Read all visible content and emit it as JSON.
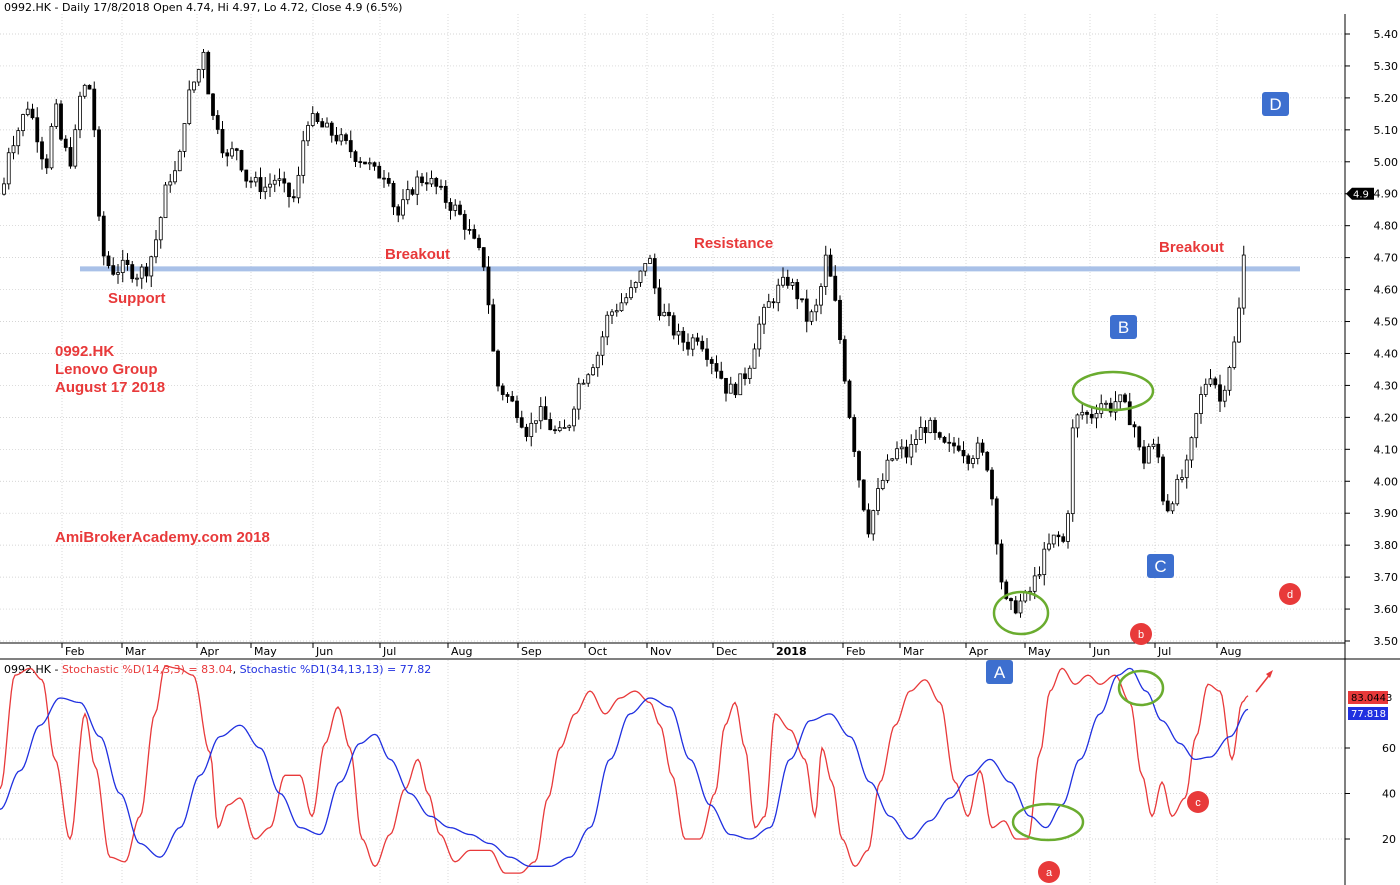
{
  "chart_data": [
    {
      "type": "candlestick",
      "header": "0992.HK - Daily 17/8/2018 Open 4.74, Hi 4.97, Lo 4.72, Close 4.9 (6.5%)",
      "months": [
        "Feb",
        "Mar",
        "Apr",
        "May",
        "Jun",
        "Jul",
        "Aug",
        "Sep",
        "Oct",
        "Nov",
        "Dec",
        "2018",
        "Feb",
        "Mar",
        "Apr",
        "May",
        "Jun",
        "Jul",
        "Aug"
      ],
      "y_ticks": [
        "5.40",
        "5.30",
        "5.20",
        "5.10",
        "5.00",
        "4.90",
        "4.80",
        "4.70",
        "4.60",
        "4.50",
        "4.40",
        "4.30",
        "4.20",
        "4.10",
        "4.00",
        "3.90",
        "3.80",
        "3.70",
        "3.60",
        "3.50"
      ],
      "ylim": [
        3.5,
        5.4
      ],
      "last_value_label": "4.9",
      "support_resistance_level": 4.665,
      "price_path": [
        [
          0,
          4.8
        ],
        [
          7,
          5.03
        ],
        [
          18,
          5.1
        ],
        [
          28,
          5.18
        ],
        [
          36,
          5.1
        ],
        [
          46,
          4.98
        ],
        [
          55,
          5.18
        ],
        [
          62,
          5.05
        ],
        [
          72,
          5.0
        ],
        [
          80,
          5.2
        ],
        [
          86,
          5.24
        ],
        [
          93,
          5.22
        ],
        [
          97,
          4.85
        ],
        [
          104,
          4.7
        ],
        [
          112,
          4.66
        ],
        [
          125,
          4.67
        ],
        [
          137,
          4.65
        ],
        [
          148,
          4.67
        ],
        [
          158,
          4.78
        ],
        [
          168,
          4.95
        ],
        [
          178,
          4.97
        ],
        [
          186,
          5.18
        ],
        [
          194,
          5.25
        ],
        [
          200,
          5.3
        ],
        [
          205,
          5.38
        ],
        [
          210,
          5.15
        ],
        [
          218,
          5.12
        ],
        [
          226,
          5.0
        ],
        [
          236,
          5.05
        ],
        [
          246,
          4.95
        ],
        [
          256,
          4.93
        ],
        [
          266,
          4.92
        ],
        [
          276,
          4.95
        ],
        [
          286,
          4.9
        ],
        [
          296,
          4.88
        ],
        [
          306,
          5.14
        ],
        [
          316,
          5.12
        ],
        [
          326,
          5.1
        ],
        [
          336,
          5.08
        ],
        [
          346,
          5.05
        ],
        [
          356,
          5.02
        ],
        [
          366,
          5.0
        ],
        [
          376,
          4.96
        ],
        [
          388,
          4.97
        ],
        [
          396,
          4.82
        ],
        [
          406,
          4.88
        ],
        [
          416,
          4.94
        ],
        [
          426,
          4.95
        ],
        [
          436,
          4.92
        ],
        [
          446,
          4.88
        ],
        [
          456,
          4.85
        ],
        [
          466,
          4.8
        ],
        [
          476,
          4.73
        ],
        [
          486,
          4.67
        ],
        [
          491,
          4.45
        ],
        [
          498,
          4.3
        ],
        [
          508,
          4.26
        ],
        [
          518,
          4.22
        ],
        [
          528,
          4.15
        ],
        [
          538,
          4.22
        ],
        [
          548,
          4.18
        ],
        [
          558,
          4.14
        ],
        [
          568,
          4.17
        ],
        [
          578,
          4.3
        ],
        [
          588,
          4.35
        ],
        [
          598,
          4.4
        ],
        [
          608,
          4.52
        ],
        [
          618,
          4.55
        ],
        [
          628,
          4.58
        ],
        [
          638,
          4.62
        ],
        [
          648,
          4.72
        ],
        [
          658,
          4.55
        ],
        [
          668,
          4.5
        ],
        [
          678,
          4.45
        ],
        [
          688,
          4.43
        ],
        [
          698,
          4.46
        ],
        [
          708,
          4.4
        ],
        [
          718,
          4.35
        ],
        [
          728,
          4.28
        ],
        [
          738,
          4.3
        ],
        [
          748,
          4.35
        ],
        [
          758,
          4.48
        ],
        [
          768,
          4.55
        ],
        [
          778,
          4.6
        ],
        [
          788,
          4.63
        ],
        [
          798,
          4.58
        ],
        [
          808,
          4.5
        ],
        [
          818,
          4.55
        ],
        [
          826,
          4.7
        ],
        [
          834,
          4.58
        ],
        [
          842,
          4.4
        ],
        [
          850,
          4.2
        ],
        [
          858,
          4.03
        ],
        [
          868,
          3.85
        ],
        [
          878,
          3.96
        ],
        [
          888,
          4.05
        ],
        [
          898,
          4.1
        ],
        [
          908,
          4.08
        ],
        [
          918,
          4.15
        ],
        [
          928,
          4.18
        ],
        [
          938,
          4.12
        ],
        [
          948,
          4.1
        ],
        [
          958,
          4.12
        ],
        [
          968,
          4.08
        ],
        [
          978,
          4.1
        ],
        [
          988,
          4.05
        ],
        [
          996,
          3.85
        ],
        [
          1004,
          3.62
        ],
        [
          1012,
          3.6
        ],
        [
          1020,
          3.62
        ],
        [
          1028,
          3.64
        ],
        [
          1036,
          3.7
        ],
        [
          1046,
          3.78
        ],
        [
          1056,
          3.83
        ],
        [
          1066,
          3.8
        ],
        [
          1072,
          4.15
        ],
        [
          1080,
          4.22
        ],
        [
          1090,
          4.2
        ],
        [
          1100,
          4.25
        ],
        [
          1110,
          4.23
        ],
        [
          1118,
          4.26
        ],
        [
          1126,
          4.22
        ],
        [
          1134,
          4.18
        ],
        [
          1142,
          4.05
        ],
        [
          1150,
          4.12
        ],
        [
          1158,
          4.08
        ],
        [
          1165,
          3.9
        ],
        [
          1172,
          3.95
        ],
        [
          1180,
          4.0
        ],
        [
          1188,
          4.05
        ],
        [
          1196,
          4.2
        ],
        [
          1204,
          4.3
        ],
        [
          1212,
          4.35
        ],
        [
          1220,
          4.25
        ],
        [
          1228,
          4.35
        ],
        [
          1236,
          4.45
        ],
        [
          1242,
          4.62
        ],
        [
          1248,
          4.9
        ]
      ],
      "annotations": {
        "support": "Support",
        "breakout_left": "Breakout",
        "resistance": "Resistance",
        "breakout_right": "Breakout",
        "info_line1": "0992.HK",
        "info_line2": "Lenovo Group",
        "info_line3": "August 17 2018",
        "watermark": "AmiBrokerAcademy.com  2018"
      },
      "wave_labels": {
        "A": "A",
        "B": "B",
        "C": "C",
        "D": "D"
      }
    },
    {
      "type": "line",
      "header_symbol": "0992.HK - ",
      "series": [
        {
          "name": "Stochastic %D(14,3,3) = 83.04",
          "color": "#e8393a",
          "value_tag": "83.0443"
        },
        {
          "name": "Stochastic %D1(34,13,13) = 77.82",
          "color": "#2030e0",
          "value_tag": "77.818"
        }
      ],
      "y_ticks": [
        "60",
        "40",
        "20"
      ],
      "ylim": [
        0,
        100
      ],
      "fast_path": [
        [
          0,
          42
        ],
        [
          15,
          92
        ],
        [
          30,
          95
        ],
        [
          42,
          90
        ],
        [
          55,
          55
        ],
        [
          70,
          20
        ],
        [
          85,
          75
        ],
        [
          95,
          52
        ],
        [
          110,
          12
        ],
        [
          125,
          10
        ],
        [
          140,
          30
        ],
        [
          155,
          75
        ],
        [
          165,
          96
        ],
        [
          178,
          95
        ],
        [
          193,
          92
        ],
        [
          210,
          58
        ],
        [
          218,
          25
        ],
        [
          228,
          35
        ],
        [
          240,
          38
        ],
        [
          255,
          20
        ],
        [
          270,
          25
        ],
        [
          285,
          48
        ],
        [
          300,
          48
        ],
        [
          312,
          30
        ],
        [
          325,
          62
        ],
        [
          338,
          78
        ],
        [
          350,
          60
        ],
        [
          362,
          20
        ],
        [
          375,
          8
        ],
        [
          390,
          22
        ],
        [
          405,
          42
        ],
        [
          418,
          55
        ],
        [
          428,
          40
        ],
        [
          440,
          22
        ],
        [
          455,
          10
        ],
        [
          470,
          15
        ],
        [
          490,
          15
        ],
        [
          505,
          5
        ],
        [
          520,
          5
        ],
        [
          535,
          10
        ],
        [
          548,
          38
        ],
        [
          560,
          60
        ],
        [
          575,
          75
        ],
        [
          590,
          85
        ],
        [
          605,
          75
        ],
        [
          620,
          82
        ],
        [
          635,
          85
        ],
        [
          650,
          80
        ],
        [
          660,
          70
        ],
        [
          672,
          48
        ],
        [
          685,
          20
        ],
        [
          700,
          20
        ],
        [
          715,
          40
        ],
        [
          725,
          70
        ],
        [
          735,
          80
        ],
        [
          745,
          60
        ],
        [
          755,
          25
        ],
        [
          765,
          30
        ],
        [
          775,
          75
        ],
        [
          790,
          68
        ],
        [
          805,
          55
        ],
        [
          815,
          30
        ],
        [
          822,
          60
        ],
        [
          832,
          45
        ],
        [
          842,
          20
        ],
        [
          855,
          8
        ],
        [
          868,
          15
        ],
        [
          880,
          45
        ],
        [
          895,
          70
        ],
        [
          910,
          85
        ],
        [
          925,
          90
        ],
        [
          940,
          80
        ],
        [
          955,
          45
        ],
        [
          968,
          30
        ],
        [
          980,
          50
        ],
        [
          992,
          25
        ],
        [
          1004,
          28
        ],
        [
          1016,
          20
        ],
        [
          1028,
          20
        ],
        [
          1040,
          58
        ],
        [
          1050,
          85
        ],
        [
          1062,
          95
        ],
        [
          1075,
          88
        ],
        [
          1088,
          92
        ],
        [
          1100,
          88
        ],
        [
          1115,
          92
        ],
        [
          1130,
          80
        ],
        [
          1142,
          48
        ],
        [
          1152,
          30
        ],
        [
          1162,
          45
        ],
        [
          1172,
          30
        ],
        [
          1185,
          38
        ],
        [
          1196,
          65
        ],
        [
          1208,
          88
        ],
        [
          1220,
          85
        ],
        [
          1232,
          55
        ],
        [
          1242,
          80
        ],
        [
          1248,
          83
        ]
      ],
      "slow_path": [
        [
          0,
          33
        ],
        [
          20,
          50
        ],
        [
          40,
          70
        ],
        [
          60,
          82
        ],
        [
          80,
          80
        ],
        [
          100,
          65
        ],
        [
          120,
          40
        ],
        [
          140,
          18
        ],
        [
          160,
          12
        ],
        [
          180,
          25
        ],
        [
          200,
          48
        ],
        [
          220,
          65
        ],
        [
          240,
          70
        ],
        [
          260,
          60
        ],
        [
          280,
          40
        ],
        [
          300,
          25
        ],
        [
          320,
          22
        ],
        [
          340,
          45
        ],
        [
          360,
          62
        ],
        [
          375,
          66
        ],
        [
          390,
          55
        ],
        [
          410,
          40
        ],
        [
          430,
          30
        ],
        [
          450,
          25
        ],
        [
          470,
          22
        ],
        [
          490,
          18
        ],
        [
          510,
          12
        ],
        [
          530,
          8
        ],
        [
          550,
          8
        ],
        [
          570,
          12
        ],
        [
          590,
          25
        ],
        [
          610,
          55
        ],
        [
          630,
          75
        ],
        [
          650,
          82
        ],
        [
          670,
          78
        ],
        [
          690,
          55
        ],
        [
          710,
          35
        ],
        [
          730,
          22
        ],
        [
          750,
          20
        ],
        [
          770,
          25
        ],
        [
          790,
          55
        ],
        [
          810,
          72
        ],
        [
          830,
          75
        ],
        [
          850,
          65
        ],
        [
          870,
          45
        ],
        [
          890,
          30
        ],
        [
          910,
          20
        ],
        [
          930,
          28
        ],
        [
          950,
          38
        ],
        [
          970,
          48
        ],
        [
          990,
          55
        ],
        [
          1010,
          45
        ],
        [
          1030,
          30
        ],
        [
          1046,
          25
        ],
        [
          1062,
          35
        ],
        [
          1080,
          55
        ],
        [
          1100,
          75
        ],
        [
          1118,
          92
        ],
        [
          1130,
          95
        ],
        [
          1146,
          85
        ],
        [
          1162,
          72
        ],
        [
          1180,
          62
        ],
        [
          1195,
          55
        ],
        [
          1210,
          56
        ],
        [
          1230,
          65
        ],
        [
          1248,
          77
        ]
      ]
    }
  ]
}
